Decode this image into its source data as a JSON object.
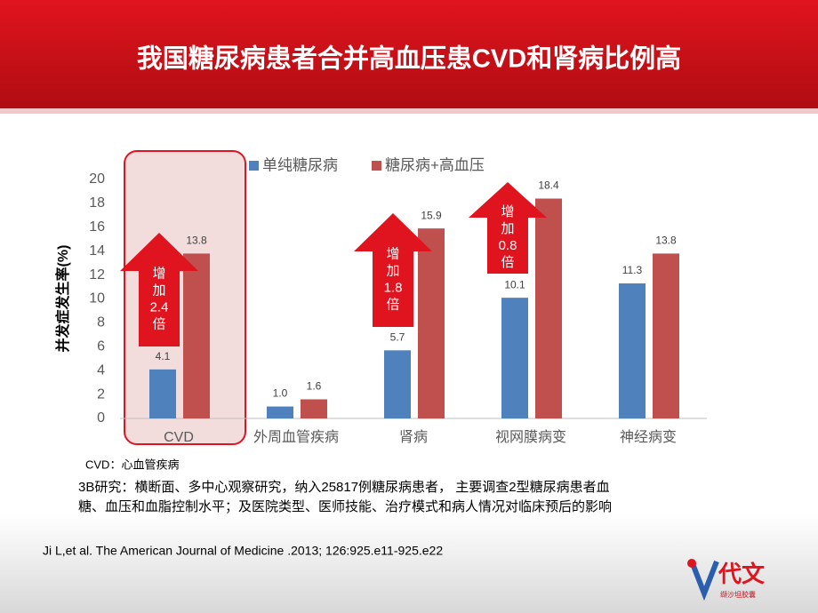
{
  "chart_data": {
    "type": "bar",
    "title": "我国糖尿病患者合并高血压患CVD和肾病比例高",
    "y_label": "并发症发生率(%)",
    "categories": [
      "CVD",
      "外周血管疾病",
      "肾病",
      "视网膜病变",
      "神经病变"
    ],
    "series": [
      {
        "name": "单纯糖尿病",
        "color": "#4f81bd",
        "values": [
          4.1,
          1,
          5.7,
          10.1,
          11.3
        ],
        "value_labels": [
          "4.1",
          "1.0",
          "5.7",
          "10.1",
          "11.3"
        ]
      },
      {
        "name": "糖尿病+高血压",
        "color": "#c0504d",
        "values": [
          13.8,
          1.6,
          15.9,
          18.4,
          13.8
        ],
        "value_labels": [
          "13.8",
          "1.6",
          "15.9",
          "18.4",
          "13.8"
        ]
      }
    ],
    "ylim": [
      0,
      20
    ],
    "yticks": [
      0,
      2,
      4,
      6,
      8,
      10,
      12,
      14,
      16,
      18,
      20
    ],
    "annotations": [
      {
        "category": 0,
        "lines": [
          "增",
          "加",
          "2.4",
          "倍"
        ]
      },
      {
        "category": 2,
        "lines": [
          "增",
          "加",
          "1.8",
          "倍"
        ]
      },
      {
        "category": 3,
        "lines": [
          "增",
          "加",
          "0.8",
          "倍"
        ]
      }
    ]
  },
  "footnote": "CVD：心血管疾病",
  "description": [
    "3B研究：横断面、多中心观察研究，纳入25817例糖尿病患者， 主要调查2型糖尿病患者血",
    "糖、血压和血脂控制水平；及医院类型、医师技能、治疗模式和病人情况对临床预后的影响"
  ],
  "citation": "Ji L,et al. The American Journal of Medicine .2013; 126:925.e11-925.e22",
  "logo": {
    "brand": "代文",
    "product": "缬沙坦胶囊"
  }
}
